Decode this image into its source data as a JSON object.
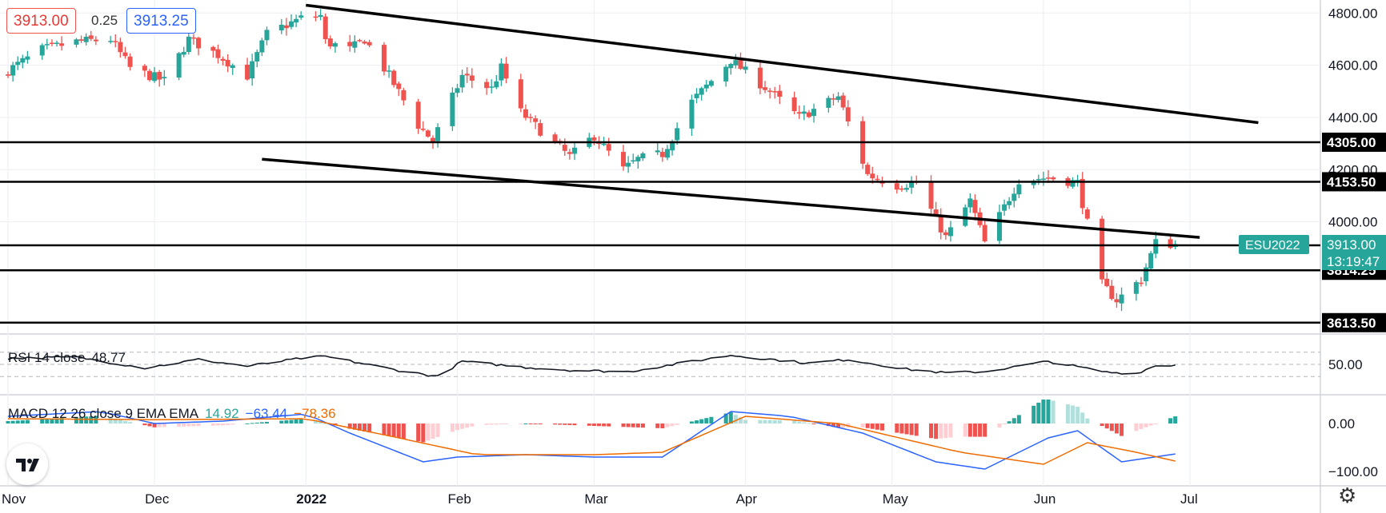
{
  "quote": {
    "bid": "3913.00",
    "spread": "0.25",
    "ask": "3913.25"
  },
  "symbol": {
    "name": "ESU2022",
    "price": "3913.00",
    "countdown": "13:19:47"
  },
  "indicators": {
    "rsi": {
      "label": "RSI 14 close",
      "value": "48.77",
      "level_label": "50.00"
    },
    "macd": {
      "label": "MACD 12 26 close 9 EMA EMA",
      "histogram": "14.92",
      "macd": "−63.44",
      "signal": "−78.36"
    }
  },
  "icons": {
    "logo": "tradingview-logo",
    "settings": "gear-icon"
  },
  "colors": {
    "up": "#26a69a",
    "down": "#ef5350",
    "rsi_line": "#131722",
    "macd_line": "#2962ff",
    "signal_line": "#ef6c00",
    "hist_up_strong": "#26a69a",
    "hist_up_weak": "#b2dfdb",
    "hist_down_strong": "#ef5350",
    "hist_down_weak": "#ffcdd2"
  },
  "chart_data": {
    "type": "candlestick",
    "title": "",
    "y_axis": {
      "min": 3570,
      "max": 4850,
      "ticks": [
        "4800.00",
        "4600.00",
        "4400.00",
        "4200.00",
        "4000.00"
      ]
    },
    "x_axis": {
      "ticks": [
        {
          "label": "Nov",
          "date": "2021-11-01"
        },
        {
          "label": "Dec",
          "date": "2021-12-01"
        },
        {
          "label": "2022",
          "date": "2022-01-01"
        },
        {
          "label": "Feb",
          "date": "2022-02-01"
        },
        {
          "label": "Mar",
          "date": "2022-03-01"
        },
        {
          "label": "Apr",
          "date": "2022-04-01"
        },
        {
          "label": "May",
          "date": "2022-05-01"
        },
        {
          "label": "Jun",
          "date": "2022-06-01"
        },
        {
          "label": "Jul",
          "date": "2022-07-01"
        }
      ]
    },
    "horizontal_levels": [
      {
        "value": 4305.0,
        "label": "4305.00"
      },
      {
        "value": 4153.5,
        "label": "4153.50"
      },
      {
        "value": 3910.0,
        "label": "3910.00"
      },
      {
        "value": 3814.25,
        "label": "3814.25"
      },
      {
        "value": 3613.5,
        "label": "3613.50"
      }
    ],
    "channel_lines": [
      {
        "from": {
          "date": "2022-01-01",
          "value": 4830
        },
        "to": {
          "date": "2022-07-15",
          "value": 4380
        }
      },
      {
        "from": {
          "date": "2021-12-23",
          "value": 4240
        },
        "to": {
          "date": "2022-07-03",
          "value": 3940
        }
      }
    ],
    "close_anchors": [
      {
        "date": "2021-11-01",
        "value": 4580
      },
      {
        "date": "2021-11-08",
        "value": 4660
      },
      {
        "date": "2021-11-15",
        "value": 4690
      },
      {
        "date": "2021-11-22",
        "value": 4700
      },
      {
        "date": "2021-11-26",
        "value": 4590
      },
      {
        "date": "2021-11-30",
        "value": 4560
      },
      {
        "date": "2021-12-03",
        "value": 4540
      },
      {
        "date": "2021-12-08",
        "value": 4700
      },
      {
        "date": "2021-12-14",
        "value": 4640
      },
      {
        "date": "2021-12-20",
        "value": 4560
      },
      {
        "date": "2021-12-24",
        "value": 4720
      },
      {
        "date": "2021-12-31",
        "value": 4780
      },
      {
        "date": "2022-01-04",
        "value": 4790
      },
      {
        "date": "2022-01-05",
        "value": 4690
      },
      {
        "date": "2022-01-10",
        "value": 4660
      },
      {
        "date": "2022-01-13",
        "value": 4700
      },
      {
        "date": "2022-01-18",
        "value": 4560
      },
      {
        "date": "2022-01-24",
        "value": 4370
      },
      {
        "date": "2022-01-27",
        "value": 4310
      },
      {
        "date": "2022-02-02",
        "value": 4560
      },
      {
        "date": "2022-02-08",
        "value": 4510
      },
      {
        "date": "2022-02-10",
        "value": 4590
      },
      {
        "date": "2022-02-14",
        "value": 4420
      },
      {
        "date": "2022-02-18",
        "value": 4350
      },
      {
        "date": "2022-02-24",
        "value": 4250
      },
      {
        "date": "2022-03-01",
        "value": 4330
      },
      {
        "date": "2022-03-07",
        "value": 4200
      },
      {
        "date": "2022-03-10",
        "value": 4240
      },
      {
        "date": "2022-03-15",
        "value": 4260
      },
      {
        "date": "2022-03-21",
        "value": 4460
      },
      {
        "date": "2022-03-29",
        "value": 4620
      },
      {
        "date": "2022-04-06",
        "value": 4500
      },
      {
        "date": "2022-04-12",
        "value": 4400
      },
      {
        "date": "2022-04-20",
        "value": 4480
      },
      {
        "date": "2022-04-26",
        "value": 4180
      },
      {
        "date": "2022-05-02",
        "value": 4140
      },
      {
        "date": "2022-05-06",
        "value": 4150
      },
      {
        "date": "2022-05-12",
        "value": 3940
      },
      {
        "date": "2022-05-17",
        "value": 4080
      },
      {
        "date": "2022-05-20",
        "value": 3920
      },
      {
        "date": "2022-05-27",
        "value": 4160
      },
      {
        "date": "2022-06-02",
        "value": 4170
      },
      {
        "date": "2022-06-08",
        "value": 4150
      },
      {
        "date": "2022-06-13",
        "value": 3760
      },
      {
        "date": "2022-06-16",
        "value": 3700
      },
      {
        "date": "2022-06-21",
        "value": 3780
      },
      {
        "date": "2022-06-24",
        "value": 3920
      },
      {
        "date": "2022-06-28",
        "value": 3913
      }
    ],
    "rsi": {
      "levels": [
        70,
        50,
        30
      ],
      "anchors": [
        {
          "date": "2021-11-01",
          "value": 60
        },
        {
          "date": "2021-11-15",
          "value": 62
        },
        {
          "date": "2021-11-29",
          "value": 44
        },
        {
          "date": "2021-12-10",
          "value": 58
        },
        {
          "date": "2021-12-20",
          "value": 47
        },
        {
          "date": "2021-12-31",
          "value": 60
        },
        {
          "date": "2022-01-05",
          "value": 63
        },
        {
          "date": "2022-01-20",
          "value": 40
        },
        {
          "date": "2022-01-28",
          "value": 30
        },
        {
          "date": "2022-02-02",
          "value": 55
        },
        {
          "date": "2022-02-15",
          "value": 45
        },
        {
          "date": "2022-02-25",
          "value": 40
        },
        {
          "date": "2022-03-08",
          "value": 38
        },
        {
          "date": "2022-03-29",
          "value": 65
        },
        {
          "date": "2022-04-14",
          "value": 52
        },
        {
          "date": "2022-04-22",
          "value": 58
        },
        {
          "date": "2022-05-04",
          "value": 42
        },
        {
          "date": "2022-05-12",
          "value": 36
        },
        {
          "date": "2022-05-20",
          "value": 38
        },
        {
          "date": "2022-06-02",
          "value": 55
        },
        {
          "date": "2022-06-14",
          "value": 37
        },
        {
          "date": "2022-06-20",
          "value": 35
        },
        {
          "date": "2022-06-24",
          "value": 48
        },
        {
          "date": "2022-06-28",
          "value": 48.77
        }
      ]
    },
    "macd": {
      "macd_anchors": [
        {
          "date": "2021-11-01",
          "value": 15
        },
        {
          "date": "2021-11-20",
          "value": 25
        },
        {
          "date": "2021-12-01",
          "value": 0
        },
        {
          "date": "2021-12-15",
          "value": 5
        },
        {
          "date": "2022-01-01",
          "value": 20
        },
        {
          "date": "2022-01-10",
          "value": -20
        },
        {
          "date": "2022-01-25",
          "value": -80
        },
        {
          "date": "2022-02-01",
          "value": -70
        },
        {
          "date": "2022-02-15",
          "value": -65
        },
        {
          "date": "2022-03-01",
          "value": -70
        },
        {
          "date": "2022-03-15",
          "value": -70
        },
        {
          "date": "2022-03-29",
          "value": 25
        },
        {
          "date": "2022-04-10",
          "value": 15
        },
        {
          "date": "2022-04-25",
          "value": -20
        },
        {
          "date": "2022-05-10",
          "value": -80
        },
        {
          "date": "2022-05-20",
          "value": -95
        },
        {
          "date": "2022-06-02",
          "value": -30
        },
        {
          "date": "2022-06-08",
          "value": -15
        },
        {
          "date": "2022-06-17",
          "value": -80
        },
        {
          "date": "2022-06-28",
          "value": -63.44
        }
      ],
      "signal_anchors": [
        {
          "date": "2021-11-01",
          "value": 10
        },
        {
          "date": "2021-12-01",
          "value": 8
        },
        {
          "date": "2022-01-01",
          "value": 10
        },
        {
          "date": "2022-01-20",
          "value": -30
        },
        {
          "date": "2022-02-05",
          "value": -65
        },
        {
          "date": "2022-03-01",
          "value": -65
        },
        {
          "date": "2022-03-15",
          "value": -60
        },
        {
          "date": "2022-04-01",
          "value": 15
        },
        {
          "date": "2022-04-20",
          "value": 0
        },
        {
          "date": "2022-05-15",
          "value": -60
        },
        {
          "date": "2022-06-01",
          "value": -85
        },
        {
          "date": "2022-06-10",
          "value": -40
        },
        {
          "date": "2022-06-20",
          "value": -60
        },
        {
          "date": "2022-06-28",
          "value": -78.36
        }
      ],
      "y_ticks": [
        "0.00",
        "−100.00"
      ]
    }
  }
}
